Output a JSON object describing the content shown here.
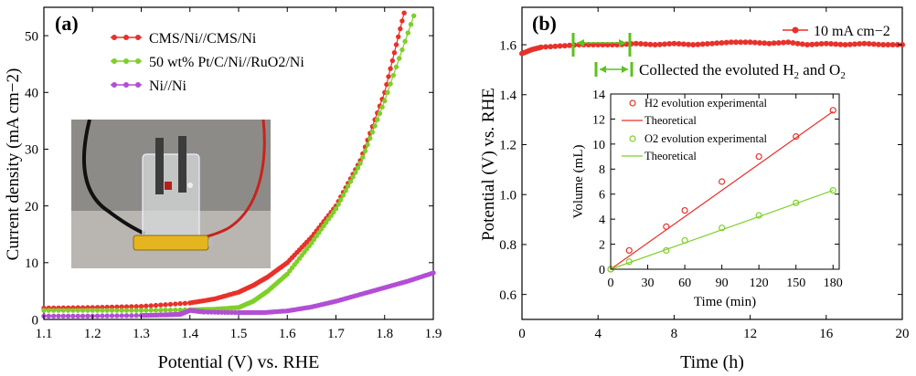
{
  "figure": {
    "panels": {
      "a": {
        "tag": "(a)"
      },
      "b": {
        "tag": "(b)",
        "annotation": "Collected the evoluted H",
        "annotation_sub1": "2",
        "annotation_mid": " and O",
        "annotation_sub2": "2"
      }
    }
  },
  "chart_data": [
    {
      "panel": "a",
      "type": "line",
      "xlabel": "Potential (V) vs. RHE",
      "ylabel": "Current density (mA cm−2)",
      "xlim": [
        1.1,
        1.9
      ],
      "ylim": [
        0,
        55
      ],
      "xticks": [
        "1.1",
        "1.2",
        "1.3",
        "1.4",
        "1.5",
        "1.6",
        "1.7",
        "1.8",
        "1.9"
      ],
      "yticks": [
        "0",
        "10",
        "20",
        "30",
        "40",
        "50"
      ],
      "grid": false,
      "legend": "top-left",
      "series": [
        {
          "name": "CMS/Ni//CMS/Ni",
          "color": "#e8312a",
          "x": [
            1.1,
            1.2,
            1.3,
            1.4,
            1.45,
            1.5,
            1.53,
            1.56,
            1.6,
            1.65,
            1.7,
            1.75,
            1.8,
            1.84
          ],
          "y": [
            2.0,
            2.1,
            2.3,
            2.9,
            3.6,
            4.8,
            6.0,
            7.5,
            10.0,
            14.5,
            20.0,
            28.0,
            40.0,
            54.0
          ]
        },
        {
          "name": "50 wt% Pt/C/Ni//RuO2/Ni",
          "color": "#7fcf2a",
          "x": [
            1.1,
            1.2,
            1.3,
            1.4,
            1.45,
            1.5,
            1.53,
            1.56,
            1.6,
            1.65,
            1.7,
            1.75,
            1.8,
            1.86
          ],
          "y": [
            1.6,
            1.6,
            1.6,
            1.7,
            1.8,
            2.1,
            3.2,
            5.0,
            8.0,
            13.5,
            19.5,
            27.5,
            38.5,
            53.5
          ]
        },
        {
          "name": "Ni//Ni",
          "color": "#b24ed6",
          "x": [
            1.1,
            1.2,
            1.3,
            1.35,
            1.38,
            1.4,
            1.43,
            1.5,
            1.55,
            1.6,
            1.65,
            1.7,
            1.75,
            1.8,
            1.85,
            1.9
          ],
          "y": [
            0.6,
            0.6,
            0.7,
            0.8,
            0.9,
            1.6,
            1.3,
            1.2,
            1.2,
            1.5,
            2.2,
            3.2,
            4.4,
            5.6,
            6.8,
            8.2
          ]
        }
      ]
    },
    {
      "panel": "b",
      "type": "line",
      "xlabel": "Time (h)",
      "ylabel": "Potential (V) vs. RHE",
      "xlim": [
        0,
        20
      ],
      "ylim": [
        0.5,
        1.75
      ],
      "xticks": [
        "0",
        "4",
        "8",
        "12",
        "16",
        "20"
      ],
      "yticks": [
        "0.6",
        "0.8",
        "1.0",
        "1.2",
        "1.4",
        "1.6"
      ],
      "grid": false,
      "legend": "top-right",
      "series": [
        {
          "name": "10 mA cm−2",
          "color": "#e8312a",
          "x": [
            0,
            0.5,
            1,
            2,
            3,
            4,
            5,
            6,
            7,
            8,
            9,
            10,
            11,
            12,
            13,
            14,
            15,
            16,
            17,
            18,
            19,
            20
          ],
          "y": [
            1.565,
            1.58,
            1.59,
            1.595,
            1.6,
            1.6,
            1.6,
            1.605,
            1.6,
            1.605,
            1.6,
            1.605,
            1.61,
            1.61,
            1.605,
            1.61,
            1.6,
            1.605,
            1.6,
            1.605,
            1.6,
            1.6
          ]
        }
      ],
      "inset": {
        "type": "scatter",
        "xlabel": "Time (min)",
        "ylabel": "Volume (mL)",
        "xlim": [
          0,
          185
        ],
        "ylim": [
          0,
          14
        ],
        "xticks": [
          "0",
          "30",
          "60",
          "90",
          "120",
          "150",
          "180"
        ],
        "yticks": [
          "0",
          "2",
          "4",
          "6",
          "8",
          "10",
          "12",
          "14"
        ],
        "legend": "top-left",
        "series": [
          {
            "name": "H2 evolution experimental",
            "kind": "points",
            "color": "#e8312a",
            "x": [
              0,
              15,
              45,
              60,
              90,
              120,
              150,
              180
            ],
            "y": [
              0,
              1.5,
              3.4,
              4.7,
              7.0,
              9.0,
              10.6,
              12.7
            ]
          },
          {
            "name": "Theoretical",
            "kind": "line",
            "color": "#e8312a",
            "x": [
              0,
              180
            ],
            "y": [
              0,
              12.6
            ]
          },
          {
            "name": "O2 evolution experimental",
            "kind": "points",
            "color": "#7fcf2a",
            "x": [
              0,
              15,
              45,
              60,
              90,
              120,
              150,
              180
            ],
            "y": [
              0,
              0.6,
              1.5,
              2.3,
              3.3,
              4.3,
              5.3,
              6.3
            ]
          },
          {
            "name": "Theoretical",
            "kind": "line",
            "color": "#7fcf2a",
            "x": [
              0,
              180
            ],
            "y": [
              0,
              6.3
            ]
          }
        ]
      }
    }
  ]
}
